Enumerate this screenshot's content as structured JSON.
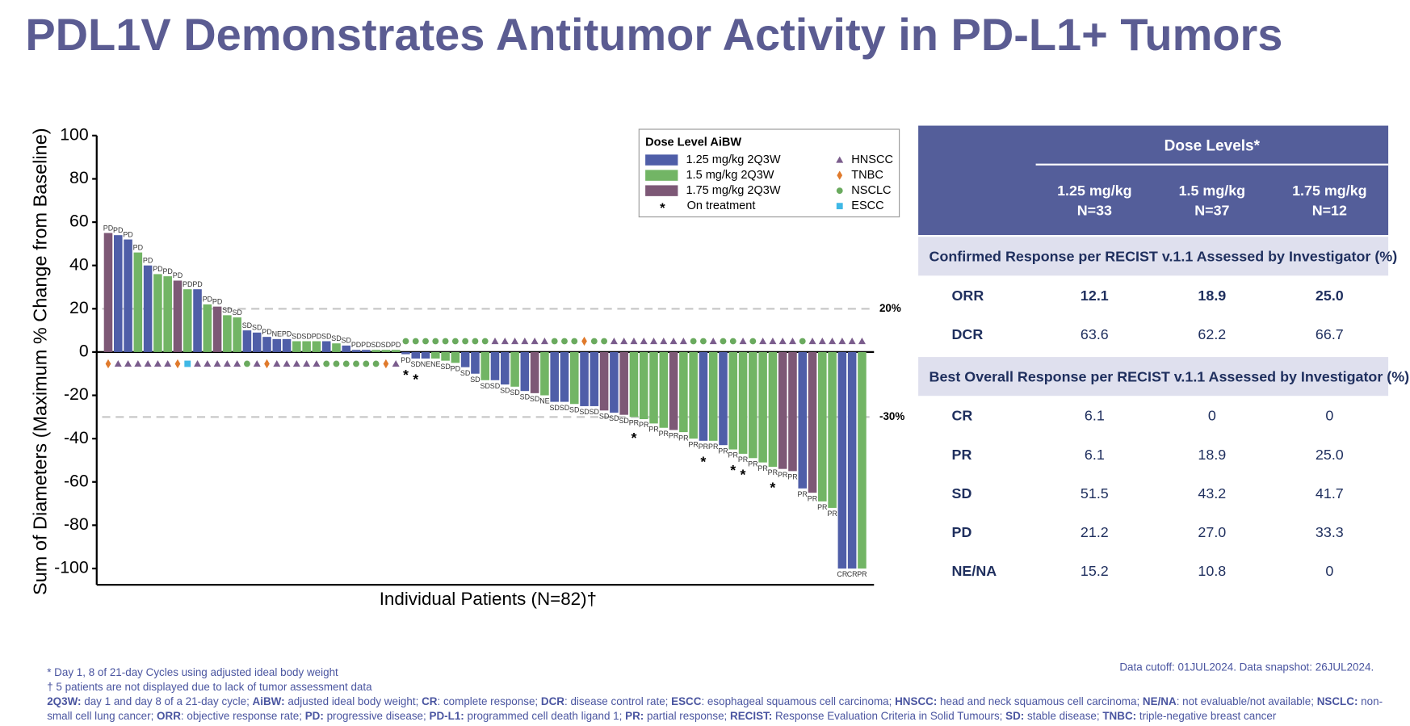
{
  "title": "PDL1V Demonstrates Antitumor Activity in PD-L1+ Tumors",
  "chart_data": {
    "type": "waterfall",
    "y_label": "Sum of Diameters (Maximum % Change from Baseline)",
    "x_label": "Individual Patients (N=82)†",
    "ylim": [
      -100,
      100
    ],
    "yticks": [
      100,
      80,
      60,
      40,
      20,
      0,
      -20,
      -40,
      -60,
      -80,
      -100
    ],
    "ref_lines": [
      {
        "value": 20,
        "label": "20%"
      },
      {
        "value": -30,
        "label": "-30%"
      }
    ],
    "legend_title": "Dose Level AiBW",
    "series": [
      {
        "name": "1.25 mg/kg 2Q3W",
        "color": "#4f5ea8"
      },
      {
        "name": "1.5 mg/kg 2Q3W",
        "color": "#72b565"
      },
      {
        "name": "1.75 mg/kg 2Q3W",
        "color": "#7d5876"
      }
    ],
    "tumor_types": [
      {
        "name": "HNSCC",
        "shape": "triangle",
        "color": "#7a5c8c"
      },
      {
        "name": "TNBC",
        "shape": "diamond",
        "color": "#e07a2c"
      },
      {
        "name": "NSCLC",
        "shape": "circle",
        "color": "#6aaa5e"
      },
      {
        "name": "ESCC",
        "shape": "square",
        "color": "#3fb8e6"
      }
    ],
    "on_treatment_marker": "*",
    "on_treatment_label": "On treatment",
    "values": [
      55,
      54,
      52,
      46,
      40,
      36,
      35,
      33,
      29,
      29,
      22,
      21,
      17,
      16,
      10,
      9,
      7,
      6,
      6,
      5,
      5,
      5,
      5,
      4,
      3,
      1,
      1,
      1,
      1,
      1,
      -1,
      -3,
      -3,
      -3,
      -4,
      -5,
      -7,
      -10,
      -13,
      -13,
      -15,
      -16,
      -18,
      -19,
      -20,
      -23,
      -23,
      -24,
      -25,
      -25,
      -27,
      -28,
      -29,
      -30,
      -31,
      -33,
      -35,
      -36,
      -37,
      -40,
      -41,
      -41,
      -43,
      -45,
      -47,
      -49,
      -51,
      -53,
      -54,
      -55,
      -63,
      -65,
      -69,
      -72,
      -100,
      -100,
      -100
    ],
    "dose": [
      2,
      0,
      0,
      1,
      0,
      1,
      1,
      2,
      1,
      0,
      1,
      2,
      1,
      1,
      0,
      0,
      0,
      0,
      0,
      1,
      1,
      1,
      0,
      1,
      0,
      0,
      0,
      1,
      1,
      1,
      0,
      0,
      0,
      1,
      1,
      1,
      0,
      0,
      1,
      0,
      0,
      1,
      0,
      2,
      1,
      0,
      0,
      1,
      0,
      0,
      2,
      0,
      2,
      1,
      1,
      1,
      1,
      2,
      1,
      1,
      0,
      1,
      0,
      1,
      1,
      1,
      1,
      1,
      2,
      2,
      0,
      2,
      1,
      1,
      0,
      0,
      1
    ],
    "response": [
      "PD",
      "PD",
      "PD",
      "PD",
      "PD",
      "PD",
      "PD",
      "PD",
      "PD",
      "PD",
      "PD",
      "PD",
      "SD",
      "SD",
      "SD",
      "SD",
      "PD",
      "NE",
      "PD",
      "SD",
      "SD",
      "PD",
      "SD",
      "SD",
      "SD",
      "PD",
      "PD",
      "SD",
      "SD",
      "PD",
      "PD",
      "SD",
      "NE",
      "NE",
      "SD",
      "PD",
      "SD",
      "SD",
      "SD",
      "SD",
      "SD",
      "SD",
      "SD",
      "SD",
      "NE",
      "SD",
      "SD",
      "SD",
      "SD",
      "SD",
      "SD",
      "SD",
      "SD",
      "PR",
      "PR",
      "PR",
      "PR",
      "PR",
      "PR",
      "PR",
      "PR",
      "PR",
      "PR",
      "PR",
      "PR",
      "PR",
      "PR",
      "PR",
      "PR",
      "PR",
      "PR",
      "PR",
      "PR",
      "PR",
      "CR",
      "CR",
      "PR"
    ],
    "tumor": [
      1,
      0,
      0,
      0,
      0,
      0,
      0,
      1,
      3,
      0,
      0,
      0,
      0,
      0,
      2,
      0,
      1,
      0,
      0,
      0,
      0,
      0,
      2,
      2,
      2,
      2,
      2,
      2,
      1,
      0,
      2,
      2,
      2,
      2,
      2,
      2,
      2,
      2,
      2,
      0,
      0,
      0,
      0,
      0,
      0,
      2,
      2,
      2,
      1,
      2,
      2,
      0,
      0,
      0,
      0,
      0,
      0,
      0,
      0,
      2,
      2,
      0,
      2,
      2,
      0,
      2,
      0,
      0,
      0,
      0,
      2,
      0,
      0,
      0,
      0,
      0,
      0
    ],
    "on_treatment": [
      30,
      31,
      53,
      60,
      63,
      64,
      67
    ]
  },
  "table": {
    "group_header": "Dose Levels*",
    "columns": [
      [
        "1.25 mg/kg",
        "N=33"
      ],
      [
        "1.5 mg/kg",
        "N=37"
      ],
      [
        "1.75 mg/kg",
        "N=12"
      ]
    ],
    "sections": [
      {
        "title": "Confirmed Response per RECIST v.1.1 Assessed by Investigator (%)",
        "rows": [
          {
            "label": "ORR",
            "values": [
              "12.1",
              "18.9",
              "25.0"
            ]
          },
          {
            "label": "DCR",
            "values": [
              "63.6",
              "62.2",
              "66.7"
            ]
          }
        ]
      },
      {
        "title": "Best Overall Response per RECIST v.1.1 Assessed by Investigator (%)",
        "rows": [
          {
            "label": "CR",
            "values": [
              "6.1",
              "0",
              "0"
            ]
          },
          {
            "label": "PR",
            "values": [
              "6.1",
              "18.9",
              "25.0"
            ]
          },
          {
            "label": "SD",
            "values": [
              "51.5",
              "43.2",
              "41.7"
            ]
          },
          {
            "label": "PD",
            "values": [
              "21.2",
              "27.0",
              "33.3"
            ]
          },
          {
            "label": "NE/NA",
            "values": [
              "15.2",
              "10.8",
              "0"
            ]
          }
        ]
      }
    ]
  },
  "data_cutoff": "Data cutoff: 01JUL2024. Data snapshot: 26JUL2024.",
  "notes": [
    "* Day 1, 8 of 21-day Cycles using adjusted ideal body weight",
    "† 5 patients are not displayed due to lack of tumor assessment data"
  ],
  "abbreviations": [
    [
      "2Q3W:",
      " day 1 and day 8 of a 21-day cycle; "
    ],
    [
      "AiBW:",
      " adjusted ideal body weight; "
    ],
    [
      "CR",
      ": complete response; "
    ],
    [
      "DCR",
      ": disease control rate; "
    ],
    [
      "ESCC",
      ": esophageal squamous cell carcinoma; "
    ],
    [
      "HNSCC:",
      " head and neck squamous cell carcinoma; "
    ],
    [
      "NE/NA",
      ": not evaluable/not available; "
    ],
    [
      "NSCLC:",
      " non-small cell lung cancer; "
    ],
    [
      "ORR",
      ": objective response rate; "
    ],
    [
      "PD:",
      " progressive disease; "
    ],
    [
      "PD-L1:",
      " programmed cell death ligand 1; "
    ],
    [
      "PR:",
      " partial response; "
    ],
    [
      "RECIST:",
      " Response Evaluation Criteria in Solid Tumours; "
    ],
    [
      "SD:",
      " stable disease; "
    ],
    [
      "TNBC:",
      " triple-negative breast cancer"
    ]
  ]
}
